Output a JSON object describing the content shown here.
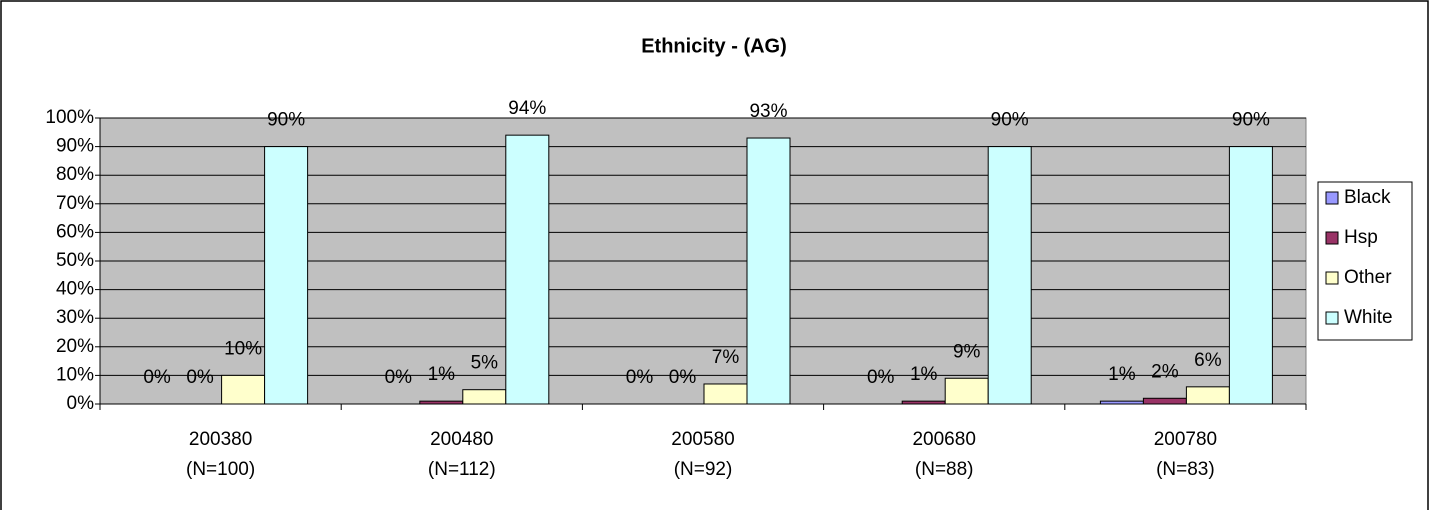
{
  "chart_data": {
    "type": "bar",
    "title": "Ethnicity -  (AG)",
    "categories": [
      "200380\n(N=100)",
      "200480\n(N=112)",
      "200580\n(N=92)",
      "200680\n(N=88)",
      "200780\n(N=83)"
    ],
    "series": [
      {
        "name": "Black",
        "color": "#9999ff",
        "values": [
          0,
          0,
          0,
          0,
          1
        ],
        "value_labels": [
          "0%",
          "0%",
          "0%",
          "0%",
          "1%"
        ]
      },
      {
        "name": "Hsp",
        "color": "#993366",
        "values": [
          0,
          1,
          0,
          1,
          2
        ],
        "value_labels": [
          "0%",
          "1%",
          "0%",
          "1%",
          "2%"
        ]
      },
      {
        "name": "Other",
        "color": "#ffffcc",
        "values": [
          10,
          5,
          7,
          9,
          6
        ],
        "value_labels": [
          "10%",
          "5%",
          "7%",
          "9%",
          "6%"
        ]
      },
      {
        "name": "White",
        "color": "#ccffff",
        "values": [
          90,
          94,
          93,
          90,
          90
        ],
        "value_labels": [
          "90%",
          "94%",
          "93%",
          "90%",
          "90%"
        ]
      }
    ],
    "ylim": [
      0,
      100
    ],
    "yticks": [
      {
        "value": 0,
        "label": "0%"
      },
      {
        "value": 10,
        "label": "10%"
      },
      {
        "value": 20,
        "label": "20%"
      },
      {
        "value": 30,
        "label": "30%"
      },
      {
        "value": 40,
        "label": "40%"
      },
      {
        "value": 50,
        "label": "50%"
      },
      {
        "value": 60,
        "label": "60%"
      },
      {
        "value": 70,
        "label": "70%"
      },
      {
        "value": 80,
        "label": "80%"
      },
      {
        "value": 90,
        "label": "90%"
      },
      {
        "value": 100,
        "label": "100%"
      }
    ],
    "grid": true,
    "legend": "right",
    "plot_background": "#c0c0c0"
  }
}
